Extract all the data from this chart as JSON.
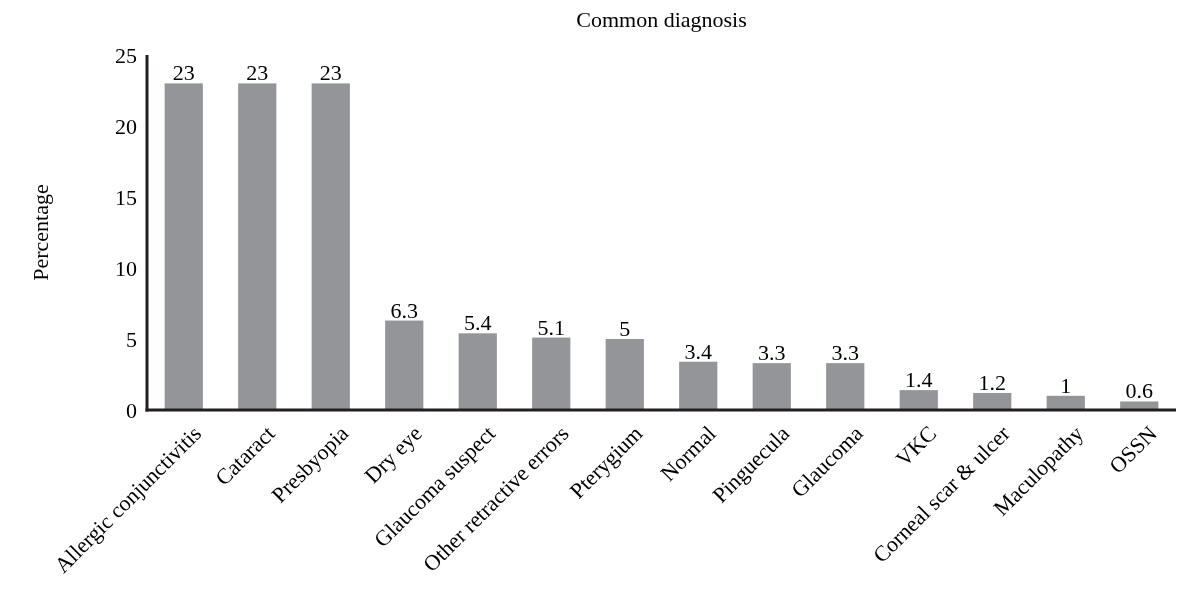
{
  "chart_data": {
    "type": "bar",
    "title": "Common diagnosis",
    "ylabel": "Percentage",
    "categories": [
      "Allergic conjunctivitis",
      "Cataract",
      "Presbyopia",
      "Dry eye",
      "Glaucoma suspect",
      "Other retractive errors",
      "Pterygium",
      "Normal",
      "Pinguecula",
      "Glaucoma",
      "VKC",
      "Corneal scar & ulcer",
      "Maculopathy",
      "OSSN"
    ],
    "values": [
      23,
      23,
      23,
      6.3,
      5.4,
      5.1,
      5,
      3.4,
      3.3,
      3.3,
      1.4,
      1.2,
      1,
      0.6
    ],
    "data_labels": true,
    "color": "#939598",
    "ylim": [
      0,
      25
    ],
    "yticks": [
      0,
      5,
      10,
      15,
      20,
      25
    ],
    "grid": false
  }
}
